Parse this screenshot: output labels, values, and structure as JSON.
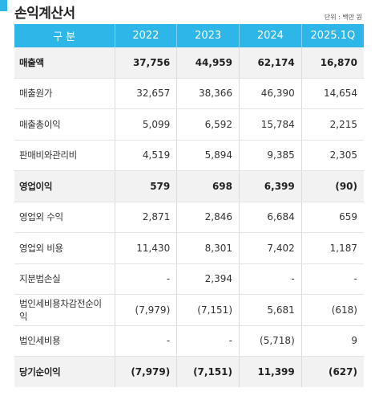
{
  "title": "손익계산서",
  "unit": "단위 : 백만 원",
  "colors": {
    "accent": "#2eb6e8",
    "highlight_row": "#f2f2f2"
  },
  "columns": [
    "구 분",
    "2022",
    "2023",
    "2024",
    "2025.1Q"
  ],
  "rows": [
    {
      "label": "매출액",
      "values": [
        "37,756",
        "44,959",
        "62,174",
        "16,870"
      ],
      "highlight": true
    },
    {
      "label": "매출원가",
      "values": [
        "32,657",
        "38,366",
        "46,390",
        "14,654"
      ],
      "highlight": false
    },
    {
      "label": "매출총이익",
      "values": [
        "5,099",
        "6,592",
        "15,784",
        "2,215"
      ],
      "highlight": false
    },
    {
      "label": "판매비와관리비",
      "values": [
        "4,519",
        "5,894",
        "9,385",
        "2,305"
      ],
      "highlight": false
    },
    {
      "label": "영업이익",
      "values": [
        "579",
        "698",
        "6,399",
        "(90)"
      ],
      "highlight": true
    },
    {
      "label": "영업외 수익",
      "values": [
        "2,871",
        "2,846",
        "6,684",
        "659"
      ],
      "highlight": false
    },
    {
      "label": "영업외 비용",
      "values": [
        "11,430",
        "8,301",
        "7,402",
        "1,187"
      ],
      "highlight": false
    },
    {
      "label": "지분법손실",
      "values": [
        "-",
        "2,394",
        "-",
        "-"
      ],
      "highlight": false
    },
    {
      "label": "법인세비용차감전순이익",
      "values": [
        "(7,979)",
        "(7,151)",
        "5,681",
        "(618)"
      ],
      "highlight": false
    },
    {
      "label": "법인세비용",
      "values": [
        "-",
        "-",
        "(5,718)",
        "9"
      ],
      "highlight": false
    },
    {
      "label": "당기순이익",
      "values": [
        "(7,979)",
        "(7,151)",
        "11,399",
        "(627)"
      ],
      "highlight": true
    }
  ]
}
